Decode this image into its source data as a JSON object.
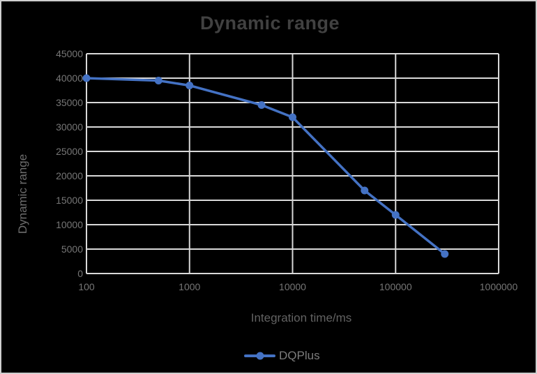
{
  "window": {
    "background_color": "#000000",
    "border_color": "#cfcfcf"
  },
  "chart_data": {
    "type": "line",
    "title": "Dynamic range",
    "xlabel": "Integration time/ms",
    "ylabel": "Dynamic range",
    "x_scale": "log",
    "xlim": [
      100,
      1000000
    ],
    "ylim": [
      0,
      45000
    ],
    "x_ticks": [
      100,
      1000,
      10000,
      100000,
      1000000
    ],
    "y_ticks": [
      0,
      5000,
      10000,
      15000,
      20000,
      25000,
      30000,
      35000,
      40000,
      45000
    ],
    "grid": true,
    "gridline_color": "#d9d9d9",
    "legend_position": "bottom",
    "series": [
      {
        "name": "DQPlus",
        "color": "#4472C4",
        "marker": "circle",
        "x": [
          100,
          500,
          1000,
          5000,
          10000,
          50000,
          100000,
          300000
        ],
        "y": [
          40000,
          39500,
          38500,
          34500,
          32000,
          17000,
          12000,
          4000
        ]
      }
    ]
  }
}
